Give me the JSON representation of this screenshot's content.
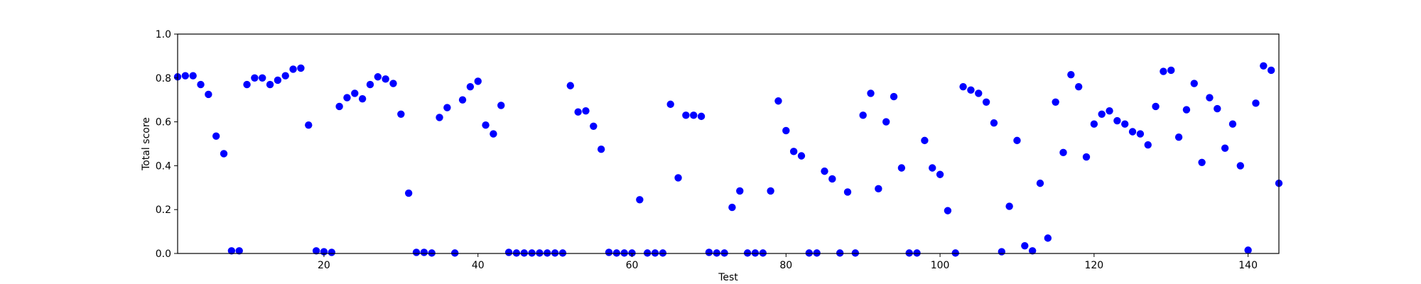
{
  "chart_data": {
    "type": "scatter",
    "xlabel": "Test",
    "ylabel": "Total score",
    "xlim": [
      1,
      144
    ],
    "ylim": [
      0,
      1.0
    ],
    "x_ticks": [
      20,
      40,
      60,
      80,
      100,
      120,
      140
    ],
    "y_ticks": [
      0.0,
      0.2,
      0.4,
      0.6,
      0.8,
      1.0
    ],
    "x_tick_labels": [
      "20",
      "40",
      "60",
      "80",
      "100",
      "120",
      "140"
    ],
    "y_tick_labels": [
      "0.0",
      "0.2",
      "0.4",
      "0.6",
      "0.8",
      "1.0"
    ],
    "grid": false,
    "marker_color": "#0000ff",
    "series": [
      {
        "x": [
          1,
          2,
          3,
          4,
          5,
          6,
          7,
          8,
          9,
          10,
          11,
          12,
          13,
          14,
          15,
          16,
          17,
          18,
          19,
          20,
          21,
          22,
          23,
          24,
          25,
          26,
          27,
          28,
          29,
          30,
          31,
          32,
          33,
          34,
          35,
          36,
          37,
          38,
          39,
          40,
          41,
          42,
          43,
          44,
          45,
          46,
          47,
          48,
          49,
          50,
          51,
          52,
          53,
          54,
          55,
          56,
          57,
          58,
          59,
          60,
          61,
          62,
          63,
          64,
          65,
          66,
          67,
          68,
          69,
          70,
          71,
          72,
          73,
          74,
          75,
          76,
          77,
          78,
          79,
          80,
          81,
          82,
          83,
          84,
          85,
          86,
          87,
          88,
          89,
          90,
          91,
          92,
          93,
          94,
          95,
          96,
          97,
          98,
          99,
          100,
          101,
          102,
          103,
          104,
          105,
          106,
          107,
          108,
          109,
          110,
          111,
          112,
          113,
          114,
          115,
          116,
          117,
          118,
          119,
          120,
          121,
          122,
          123,
          124,
          125,
          126,
          127,
          128,
          129,
          130,
          131,
          132,
          133,
          134,
          135,
          136,
          137,
          138,
          139,
          140,
          141,
          142,
          143,
          144
        ],
        "y": [
          0.805,
          0.81,
          0.81,
          0.77,
          0.725,
          0.535,
          0.455,
          0.012,
          0.012,
          0.77,
          0.8,
          0.8,
          0.77,
          0.79,
          0.81,
          0.84,
          0.845,
          0.585,
          0.012,
          0.008,
          0.005,
          0.67,
          0.71,
          0.73,
          0.705,
          0.77,
          0.805,
          0.795,
          0.775,
          0.635,
          0.275,
          0.005,
          0.005,
          0.002,
          0.62,
          0.665,
          0.002,
          0.7,
          0.76,
          0.785,
          0.585,
          0.545,
          0.675,
          0.005,
          0.002,
          0.002,
          0.002,
          0.002,
          0.002,
          0.002,
          0.002,
          0.765,
          0.645,
          0.65,
          0.58,
          0.475,
          0.005,
          0.002,
          0.002,
          0.002,
          0.245,
          0.002,
          0.002,
          0.002,
          0.68,
          0.345,
          0.63,
          0.63,
          0.625,
          0.005,
          0.002,
          0.002,
          0.21,
          0.285,
          0.002,
          0.002,
          0.002,
          0.285,
          0.695,
          0.56,
          0.465,
          0.445,
          0.002,
          0.002,
          0.375,
          0.34,
          0.002,
          0.28,
          0.002,
          0.63,
          0.73,
          0.295,
          0.6,
          0.715,
          0.39,
          0.002,
          0.002,
          0.515,
          0.39,
          0.36,
          0.195,
          0.002,
          0.76,
          0.745,
          0.73,
          0.69,
          0.595,
          0.008,
          0.215,
          0.515,
          0.035,
          0.012,
          0.32,
          0.07,
          0.69,
          0.46,
          0.815,
          0.76,
          0.44,
          0.59,
          0.635,
          0.65,
          0.605,
          0.59,
          0.555,
          0.545,
          0.495,
          0.67,
          0.83,
          0.835,
          0.53,
          0.655,
          0.775,
          0.415,
          0.71,
          0.66,
          0.48,
          0.59,
          0.4,
          0.015,
          0.685,
          0.855,
          0.835,
          0.32
        ]
      }
    ]
  }
}
